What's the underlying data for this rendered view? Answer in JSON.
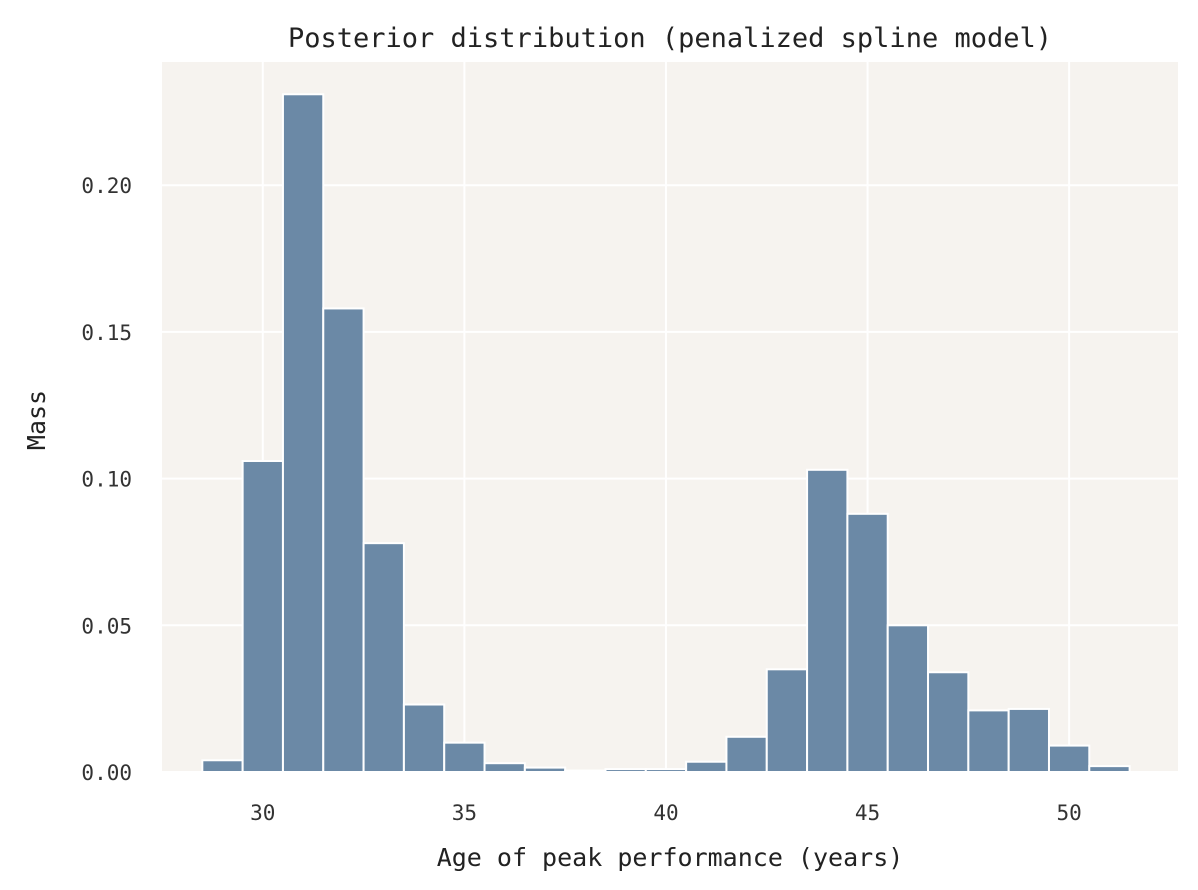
{
  "chart_data": {
    "type": "bar",
    "title": "Posterior distribution (penalized spline model)",
    "xlabel": "Age of peak performance (years)",
    "ylabel": "Mass",
    "xlim": [
      27.5,
      52.7
    ],
    "ylim": [
      0,
      0.242
    ],
    "xticks": [
      30,
      35,
      40,
      45,
      50
    ],
    "xtick_labels": [
      "30",
      "35",
      "40",
      "45",
      "50"
    ],
    "yticks": [
      0.0,
      0.05,
      0.1,
      0.15,
      0.2
    ],
    "ytick_labels": [
      "0.00",
      "0.05",
      "0.10",
      "0.15",
      "0.20"
    ],
    "bin_width": 1,
    "bin_centers": [
      29,
      30,
      31,
      32,
      33,
      34,
      35,
      36,
      37,
      38,
      39,
      40,
      41,
      42,
      43,
      44,
      45,
      46,
      47,
      48,
      49,
      50,
      51
    ],
    "values": [
      0.004,
      0.106,
      0.231,
      0.158,
      0.078,
      0.023,
      0.01,
      0.003,
      0.0015,
      0.0005,
      0.001,
      0.001,
      0.0035,
      0.012,
      0.035,
      0.103,
      0.088,
      0.05,
      0.034,
      0.021,
      0.0215,
      0.009,
      0.002
    ],
    "grid": true,
    "legend": "none",
    "colors": {
      "bar": "#6b89a6",
      "background": "#f6f3ef",
      "grid": "#ffffff"
    }
  }
}
